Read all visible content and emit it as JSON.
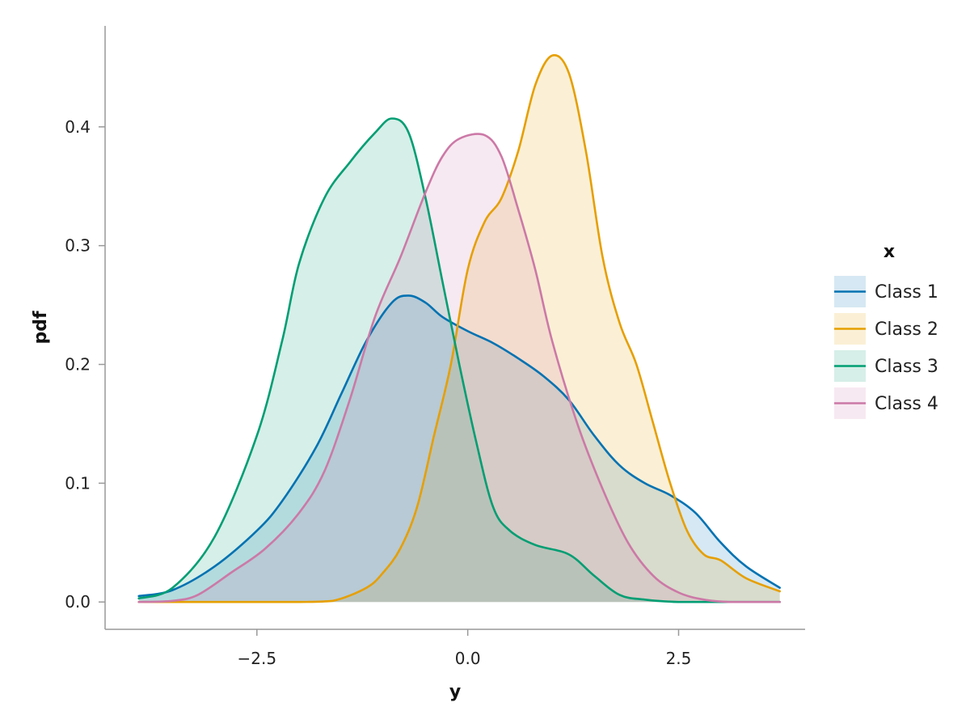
{
  "chart_data": {
    "type": "area",
    "xlabel": "y",
    "ylabel": "pdf",
    "xlim": [
      -4.3,
      4.0
    ],
    "ylim": [
      -0.023,
      0.485
    ],
    "xticks": [
      -2.5,
      0.0,
      2.5
    ],
    "xtick_labels": [
      "−2.5",
      "0.0",
      "2.5"
    ],
    "yticks": [
      0.0,
      0.1,
      0.2,
      0.3,
      0.4
    ],
    "ytick_labels": [
      "0.0",
      "0.1",
      "0.2",
      "0.3",
      "0.4"
    ],
    "grid": false,
    "legend": {
      "title": "x",
      "placement": "right"
    },
    "series": [
      {
        "name": "Class 1",
        "color": "#0072B2",
        "x": [
          -3.9,
          -3.5,
          -3.0,
          -2.5,
          -2.2,
          -1.8,
          -1.5,
          -1.2,
          -0.9,
          -0.7,
          -0.5,
          -0.3,
          0.0,
          0.3,
          0.6,
          0.9,
          1.2,
          1.5,
          1.8,
          2.1,
          2.4,
          2.7,
          3.0,
          3.3,
          3.7
        ],
        "y": [
          0.005,
          0.01,
          0.03,
          0.06,
          0.085,
          0.13,
          0.175,
          0.22,
          0.252,
          0.258,
          0.252,
          0.24,
          0.228,
          0.218,
          0.205,
          0.19,
          0.17,
          0.14,
          0.115,
          0.1,
          0.09,
          0.075,
          0.05,
          0.03,
          0.012
        ]
      },
      {
        "name": "Class 2",
        "color": "#E69F00",
        "x": [
          -3.9,
          -3.0,
          -2.5,
          -2.0,
          -1.6,
          -1.2,
          -1.0,
          -0.8,
          -0.6,
          -0.4,
          -0.2,
          0.0,
          0.2,
          0.4,
          0.6,
          0.8,
          1.0,
          1.2,
          1.4,
          1.6,
          1.8,
          2.0,
          2.2,
          2.4,
          2.6,
          2.8,
          3.0,
          3.3,
          3.7
        ],
        "y": [
          0.0,
          0.0,
          0.0,
          0.0,
          0.001,
          0.012,
          0.025,
          0.045,
          0.08,
          0.14,
          0.2,
          0.28,
          0.32,
          0.34,
          0.38,
          0.435,
          0.46,
          0.445,
          0.38,
          0.29,
          0.235,
          0.2,
          0.15,
          0.1,
          0.06,
          0.04,
          0.035,
          0.02,
          0.009
        ]
      },
      {
        "name": "Class 3",
        "color": "#009E73",
        "x": [
          -3.9,
          -3.5,
          -3.0,
          -2.5,
          -2.2,
          -2.0,
          -1.7,
          -1.4,
          -1.1,
          -0.9,
          -0.7,
          -0.5,
          -0.3,
          -0.1,
          0.1,
          0.3,
          0.5,
          0.8,
          1.2,
          1.5,
          1.8,
          2.1,
          2.5,
          3.0,
          3.7
        ],
        "y": [
          0.003,
          0.012,
          0.055,
          0.14,
          0.22,
          0.285,
          0.34,
          0.37,
          0.395,
          0.407,
          0.395,
          0.34,
          0.27,
          0.2,
          0.135,
          0.08,
          0.06,
          0.048,
          0.04,
          0.022,
          0.006,
          0.002,
          0.0,
          0.0,
          0.0
        ]
      },
      {
        "name": "Class 4",
        "color": "#CC79A7",
        "x": [
          -3.9,
          -3.5,
          -3.2,
          -2.8,
          -2.4,
          -2.0,
          -1.7,
          -1.4,
          -1.1,
          -0.8,
          -0.5,
          -0.3,
          -0.1,
          0.2,
          0.4,
          0.6,
          0.8,
          1.0,
          1.3,
          1.6,
          1.9,
          2.2,
          2.5,
          2.8,
          3.1,
          3.5,
          3.7
        ],
        "y": [
          0.0,
          0.001,
          0.006,
          0.025,
          0.045,
          0.075,
          0.11,
          0.17,
          0.24,
          0.29,
          0.345,
          0.375,
          0.39,
          0.393,
          0.375,
          0.33,
          0.28,
          0.22,
          0.15,
          0.095,
          0.05,
          0.022,
          0.008,
          0.002,
          0.0,
          0.0,
          0.0
        ]
      }
    ]
  }
}
